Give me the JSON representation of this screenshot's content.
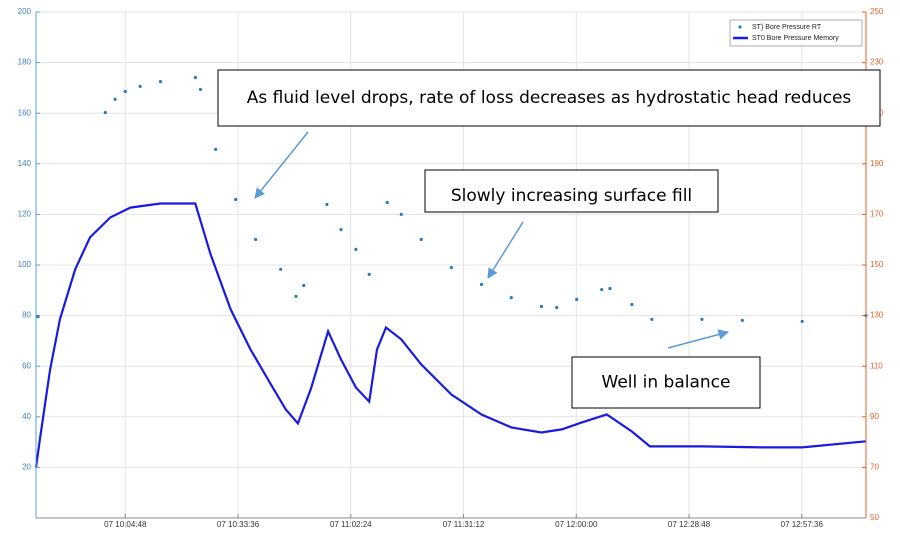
{
  "chart_data": {
    "type": "line",
    "xlim": [
      582,
      794
    ],
    "xticks": [
      {
        "value": 604.8,
        "label": "07 10:04:48"
      },
      {
        "value": 633.6,
        "label": "07 10:33:36"
      },
      {
        "value": 662.4,
        "label": "07 11:02:24"
      },
      {
        "value": 691.2,
        "label": "07 11:31:12"
      },
      {
        "value": 720,
        "label": "07 12:00:00"
      },
      {
        "value": 748.8,
        "label": "07 12:28:48"
      },
      {
        "value": 777.6,
        "label": "07 12:57:36"
      }
    ],
    "ylim": [
      0,
      200
    ],
    "yticks": [
      20,
      40,
      60,
      80,
      100,
      120,
      140,
      160,
      180,
      200
    ],
    "y2lim": [
      50,
      250
    ],
    "y2ticks": [
      50,
      70,
      90,
      110,
      130,
      150,
      170,
      190,
      210,
      230,
      250
    ],
    "grid": true,
    "legend": "upper right",
    "series": [
      {
        "name": "ST) Bore Pressure RT",
        "color": "#2b7bba",
        "style": "markers",
        "x": [
          582.5,
          null,
          599.7,
          602.2,
          604.8,
          608.6,
          613.8,
          622.7,
          624.0,
          627.9,
          633.0,
          638.1,
          644.5,
          648.4,
          650.4,
          null,
          656.3,
          659.9,
          663.7,
          667.1,
          null,
          671.7,
          675.3,
          680.4,
          688.1,
          695.8,
          703.4,
          711.1,
          715.0,
          720.1,
          726.5,
          728.6,
          734.2,
          739.3,
          752.1,
          762.4,
          777.7,
          794
        ],
        "values": [
          79.6,
          null,
          160.3,
          165.5,
          168.6,
          170.6,
          172.5,
          174.1,
          169.4,
          145.7,
          125.9,
          110.1,
          98.3,
          87.6,
          91.9,
          null,
          123.9,
          114.0,
          106.2,
          96.3,
          null,
          124.7,
          120.0,
          110.1,
          99.0,
          92.3,
          87.1,
          83.6,
          83.2,
          86.4,
          90.3,
          90.7,
          84.4,
          78.5,
          78.5,
          78.1,
          77.7,
          80.0
        ]
      },
      {
        "name": "ST0 Bore Pressure Memory",
        "color": "#1a1ae0",
        "style": "line",
        "x": [
          582.0,
          583.0,
          585.6,
          588.1,
          592.0,
          595.8,
          601.0,
          606.1,
          613.8,
          622.7,
          626.6,
          631.7,
          636.8,
          642.0,
          645.8,
          648.9,
          652.2,
          656.6,
          659.9,
          663.7,
          667.1,
          669.1,
          671.4,
          675.3,
          680.4,
          688.1,
          695.8,
          703.4,
          711.1,
          716.3,
          721.4,
          727.8,
          734.2,
          738.8,
          752.2,
          767.5,
          777.7,
          794
        ],
        "values": [
          20.0,
          31.1,
          58.7,
          78.5,
          98.3,
          110.9,
          118.8,
          122.7,
          124.3,
          124.3,
          104.2,
          82.5,
          66.6,
          52.8,
          42.9,
          37.4,
          50.9,
          73.8,
          62.7,
          51.6,
          46.0,
          66.6,
          75.3,
          70.6,
          60.7,
          48.8,
          40.9,
          35.8,
          33.8,
          35.0,
          37.8,
          40.9,
          34.2,
          28.3,
          28.3,
          27.9,
          27.9,
          30.3
        ]
      }
    ],
    "annotations": [
      {
        "text": "As fluid level drops, rate of loss decreases as hydrostatic head reduces"
      },
      {
        "text": "Slowly increasing surface fill"
      },
      {
        "text": "Well in balance"
      }
    ]
  }
}
